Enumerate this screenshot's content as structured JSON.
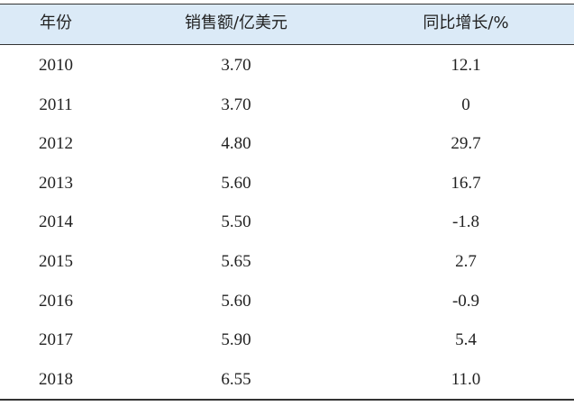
{
  "table": {
    "header": [
      "年份",
      "销售额/亿美元",
      "同比增长/%"
    ],
    "rows": [
      [
        "2010",
        "3.70",
        "12.1"
      ],
      [
        "2011",
        "3.70",
        "0"
      ],
      [
        "2012",
        "4.80",
        "29.7"
      ],
      [
        "2013",
        "5.60",
        "16.7"
      ],
      [
        "2014",
        "5.50",
        "-1.8"
      ],
      [
        "2015",
        "5.65",
        "2.7"
      ],
      [
        "2016",
        "5.60",
        "-0.9"
      ],
      [
        "2017",
        "5.90",
        "5.4"
      ],
      [
        "2018",
        "6.55",
        "11.0"
      ]
    ]
  }
}
